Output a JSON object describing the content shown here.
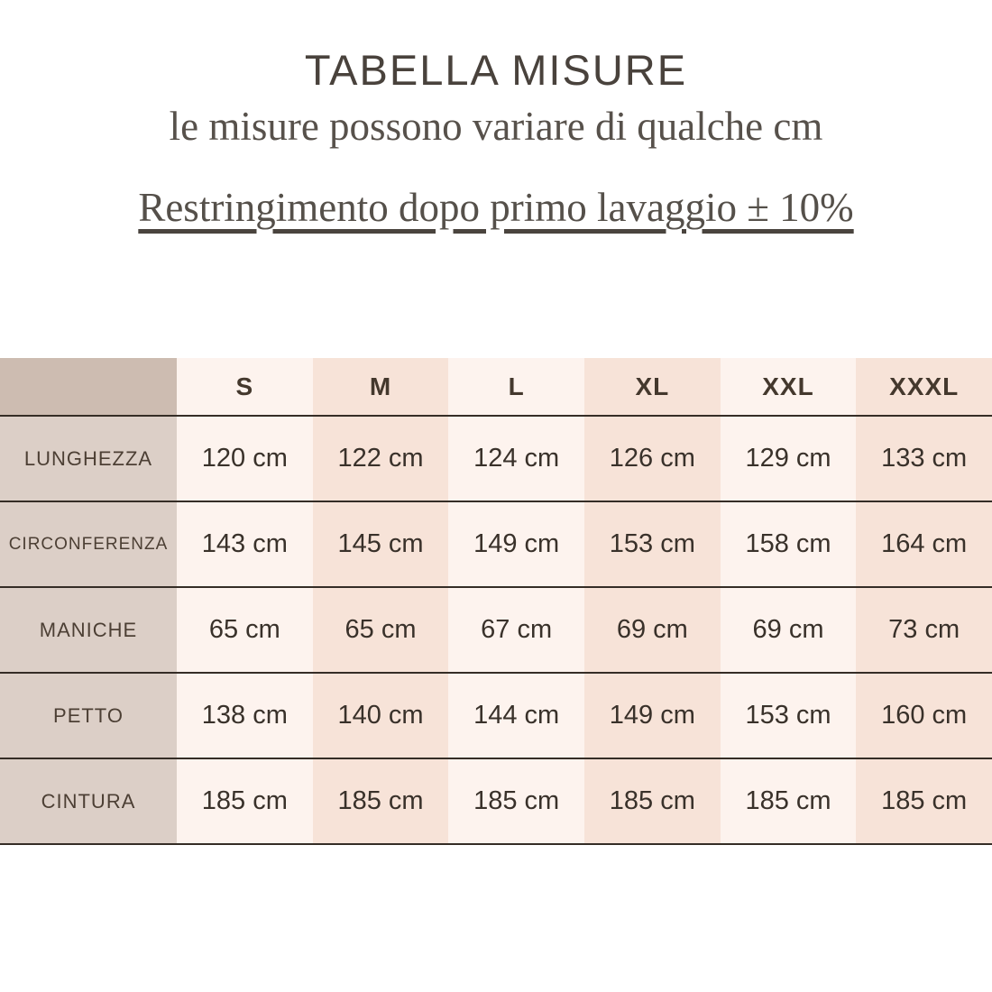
{
  "header": {
    "title": "TABELLA MISURE",
    "subtitle": "le misure possono variare di qualche cm",
    "shrinkage_note": "Restringimento dopo primo lavaggio ± 10%"
  },
  "size_table": {
    "corner_label": "",
    "column_headers": [
      "S",
      "M",
      "L",
      "XL",
      "XXL",
      "XXXL"
    ],
    "rows": [
      {
        "label": "LUNGHEZZA",
        "values": [
          "120 cm",
          "122 cm",
          "124 cm",
          "126 cm",
          "129 cm",
          "133 cm"
        ]
      },
      {
        "label": "CIRCONFERENZA",
        "values": [
          "143 cm",
          "145 cm",
          "149 cm",
          "153 cm",
          "158 cm",
          "164 cm"
        ]
      },
      {
        "label": "MANICHE",
        "values": [
          "65 cm",
          "65 cm",
          "67 cm",
          "69 cm",
          "69 cm",
          "73 cm"
        ]
      },
      {
        "label": "PETTO",
        "values": [
          "138 cm",
          "140 cm",
          "144 cm",
          "149 cm",
          "153 cm",
          "160 cm"
        ]
      },
      {
        "label": "CINTURA",
        "values": [
          "185 cm",
          "185 cm",
          "185 cm",
          "185 cm",
          "185 cm",
          "185 cm"
        ]
      }
    ],
    "unit": "cm"
  },
  "colors": {
    "title_text": "#49423c",
    "serif_text": "#57514b",
    "table_value_text": "#39312a",
    "table_label_text": "#4c3f34",
    "corner_bg": "#cdbcb1",
    "label_column_bg": "#dccfc7",
    "column_light_bg": "#fdf3ee",
    "column_peach_bg": "#f7e3d8",
    "divider": "#352d26",
    "background": "#ffffff"
  }
}
